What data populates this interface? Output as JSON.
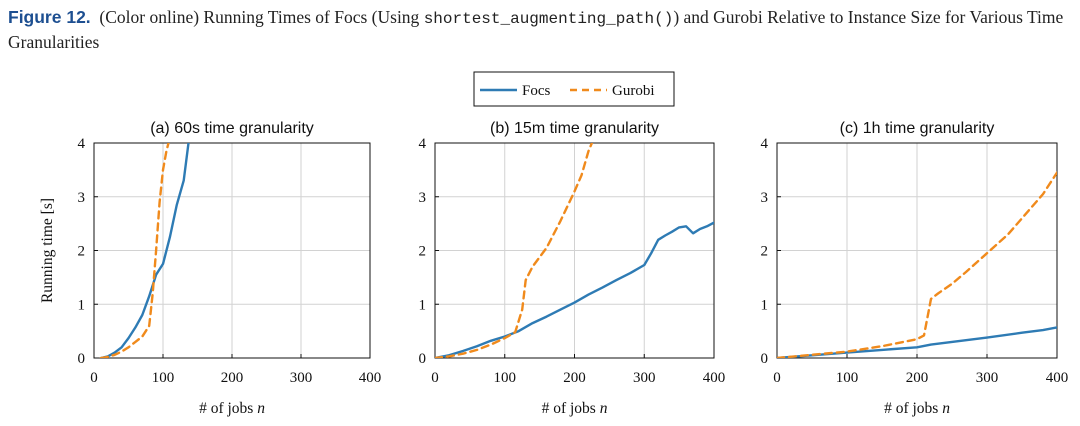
{
  "caption": {
    "figure_label": "Figure 12.",
    "before_code": "(Color online) Running Times of ",
    "focs_word": "Focs",
    "middle": " (Using ",
    "code": "shortest_augmenting_path()",
    "after_code": ") and Gurobi Relative to Instance Size for Various Time Granularities"
  },
  "chart_data": [
    {
      "type": "line",
      "title": "(a) 60s time granularity",
      "xlabel": "# of jobs n",
      "ylabel": "Running time [s]",
      "xlim": [
        0,
        400
      ],
      "ylim": [
        0,
        4
      ],
      "xticks": [
        0,
        100,
        200,
        300,
        400
      ],
      "yticks": [
        0,
        1,
        2,
        3,
        4
      ],
      "grid": true,
      "legend": "top-center (shared)",
      "series": [
        {
          "name": "Focs",
          "color": "#2e7bb4",
          "dash": "solid",
          "x": [
            10,
            20,
            30,
            40,
            50,
            60,
            70,
            80,
            90,
            100,
            110,
            120,
            130,
            137
          ],
          "y": [
            0.0,
            0.03,
            0.1,
            0.2,
            0.37,
            0.57,
            0.8,
            1.15,
            1.55,
            1.75,
            2.25,
            2.85,
            3.3,
            4.0
          ]
        },
        {
          "name": "Gurobi",
          "color": "#f08a1c",
          "dash": "dashed",
          "x": [
            10,
            20,
            30,
            40,
            50,
            60,
            70,
            80,
            85,
            90,
            95,
            100,
            105,
            108
          ],
          "y": [
            0.0,
            0.02,
            0.06,
            0.12,
            0.2,
            0.3,
            0.4,
            0.6,
            1.2,
            2.0,
            2.9,
            3.5,
            3.85,
            4.0
          ]
        }
      ]
    },
    {
      "type": "line",
      "title": "(b) 15m time granularity",
      "xlabel": "# of jobs n",
      "ylabel": "",
      "xlim": [
        0,
        400
      ],
      "ylim": [
        0,
        4
      ],
      "xticks": [
        0,
        100,
        200,
        300,
        400
      ],
      "yticks": [
        0,
        1,
        2,
        3,
        4
      ],
      "grid": true,
      "series": [
        {
          "name": "Focs",
          "color": "#2e7bb4",
          "dash": "solid",
          "x": [
            0,
            20,
            40,
            60,
            80,
            100,
            120,
            140,
            160,
            180,
            200,
            220,
            240,
            260,
            280,
            300,
            310,
            320,
            330,
            340,
            350,
            360,
            370,
            380,
            390,
            400
          ],
          "y": [
            0.0,
            0.05,
            0.13,
            0.22,
            0.32,
            0.4,
            0.5,
            0.65,
            0.77,
            0.9,
            1.03,
            1.18,
            1.31,
            1.45,
            1.58,
            1.73,
            1.95,
            2.2,
            2.28,
            2.35,
            2.43,
            2.45,
            2.32,
            2.4,
            2.45,
            2.52
          ]
        },
        {
          "name": "Gurobi",
          "color": "#f08a1c",
          "dash": "dashed",
          "x": [
            0,
            20,
            40,
            60,
            80,
            100,
            115,
            125,
            130,
            140,
            160,
            180,
            200,
            210,
            220,
            225
          ],
          "y": [
            0.0,
            0.03,
            0.08,
            0.15,
            0.25,
            0.37,
            0.48,
            0.9,
            1.45,
            1.7,
            2.05,
            2.55,
            3.1,
            3.4,
            3.85,
            4.0
          ]
        }
      ]
    },
    {
      "type": "line",
      "title": "(c) 1h time granularity",
      "xlabel": "# of jobs n",
      "ylabel": "",
      "xlim": [
        0,
        400
      ],
      "ylim": [
        0,
        4
      ],
      "xticks": [
        0,
        100,
        200,
        300,
        400
      ],
      "yticks": [
        0,
        1,
        2,
        3,
        4
      ],
      "grid": true,
      "series": [
        {
          "name": "Focs",
          "color": "#2e7bb4",
          "dash": "solid",
          "x": [
            0,
            50,
            100,
            150,
            200,
            220,
            250,
            300,
            350,
            380,
            400
          ],
          "y": [
            0.0,
            0.05,
            0.1,
            0.15,
            0.2,
            0.25,
            0.3,
            0.38,
            0.47,
            0.52,
            0.57
          ]
        },
        {
          "name": "Gurobi",
          "color": "#f08a1c",
          "dash": "dashed",
          "x": [
            0,
            50,
            100,
            150,
            200,
            210,
            220,
            230,
            250,
            270,
            300,
            330,
            360,
            380,
            400
          ],
          "y": [
            0.0,
            0.06,
            0.12,
            0.22,
            0.35,
            0.42,
            1.1,
            1.2,
            1.38,
            1.6,
            1.95,
            2.3,
            2.75,
            3.05,
            3.45
          ]
        }
      ]
    }
  ]
}
